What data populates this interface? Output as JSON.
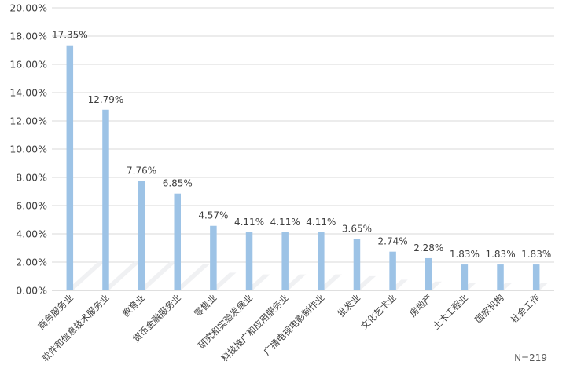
{
  "chart_data": {
    "type": "bar",
    "categories": [
      "商务服务业",
      "软件和信息技术服务业",
      "教育业",
      "货币金融服务业",
      "零售业",
      "研究和实验发展业",
      "科技推广和应用服务业",
      "广播电视电影制作业",
      "批发业",
      "文化艺术业",
      "房地产",
      "土木工程业",
      "国家机构",
      "社会工作"
    ],
    "values": [
      17.35,
      12.79,
      7.76,
      6.85,
      4.57,
      4.11,
      4.11,
      4.11,
      3.65,
      2.74,
      2.28,
      1.83,
      1.83,
      1.83
    ],
    "value_labels": [
      "17.35%",
      "12.79%",
      "7.76%",
      "6.85%",
      "4.57%",
      "4.11%",
      "4.11%",
      "4.11%",
      "3.65%",
      "2.74%",
      "2.28%",
      "1.83%",
      "1.83%",
      "1.83%"
    ],
    "y_ticks": [
      "0.00%",
      "2.00%",
      "4.00%",
      "6.00%",
      "8.00%",
      "10.00%",
      "12.00%",
      "14.00%",
      "16.00%",
      "18.00%",
      "20.00%"
    ],
    "ylim": [
      0,
      20
    ],
    "grid": true,
    "bar_color": "#9dc3e6",
    "note": "N=219"
  }
}
